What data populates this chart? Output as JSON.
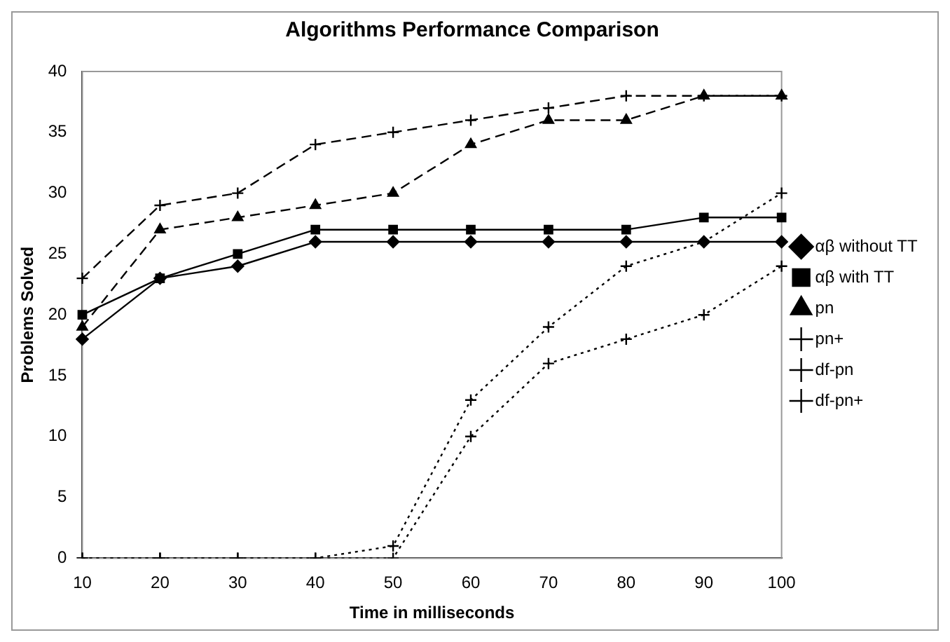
{
  "chart_data": {
    "type": "line",
    "title": "Algorithms Performance Comparison",
    "xlabel": "Time in milliseconds",
    "ylabel": "Problems Solved",
    "categories": [
      "10",
      "20",
      "30",
      "40",
      "50",
      "60",
      "70",
      "80",
      "90",
      "100"
    ],
    "ylim": [
      0,
      40
    ],
    "yticks": [
      0,
      5,
      10,
      15,
      20,
      25,
      30,
      35,
      40
    ],
    "grid": false,
    "legend": "right",
    "series": [
      {
        "name": "αβ without TT",
        "color": "#000000",
        "marker": "diamond",
        "line_style": "solid",
        "values": [
          18,
          23,
          24,
          26,
          26,
          26,
          26,
          26,
          26,
          26
        ]
      },
      {
        "name": "αβ with TT",
        "color": "#000000",
        "marker": "square",
        "line_style": "solid",
        "values": [
          20,
          23,
          25,
          27,
          27,
          27,
          27,
          27,
          28,
          28
        ]
      },
      {
        "name": "pn",
        "color": "#000000",
        "marker": "triangle",
        "line_style": "dashed",
        "values": [
          19,
          27,
          28,
          29,
          30,
          34,
          36,
          36,
          38,
          38
        ]
      },
      {
        "name": "pn+",
        "color": "#000000",
        "marker": "cross",
        "line_style": "dashed",
        "values": [
          23,
          29,
          30,
          34,
          35,
          36,
          37,
          38,
          38,
          38
        ]
      },
      {
        "name": "df-pn",
        "color": "#000000",
        "marker": "cross",
        "line_style": "dotted",
        "values": [
          0,
          0,
          0,
          0,
          1,
          13,
          19,
          24,
          26,
          30
        ]
      },
      {
        "name": "df-pn+",
        "color": "#000000",
        "marker": "cross",
        "line_style": "dotted",
        "values": [
          0,
          0,
          0,
          0,
          0,
          10,
          16,
          18,
          20,
          24
        ]
      }
    ]
  }
}
